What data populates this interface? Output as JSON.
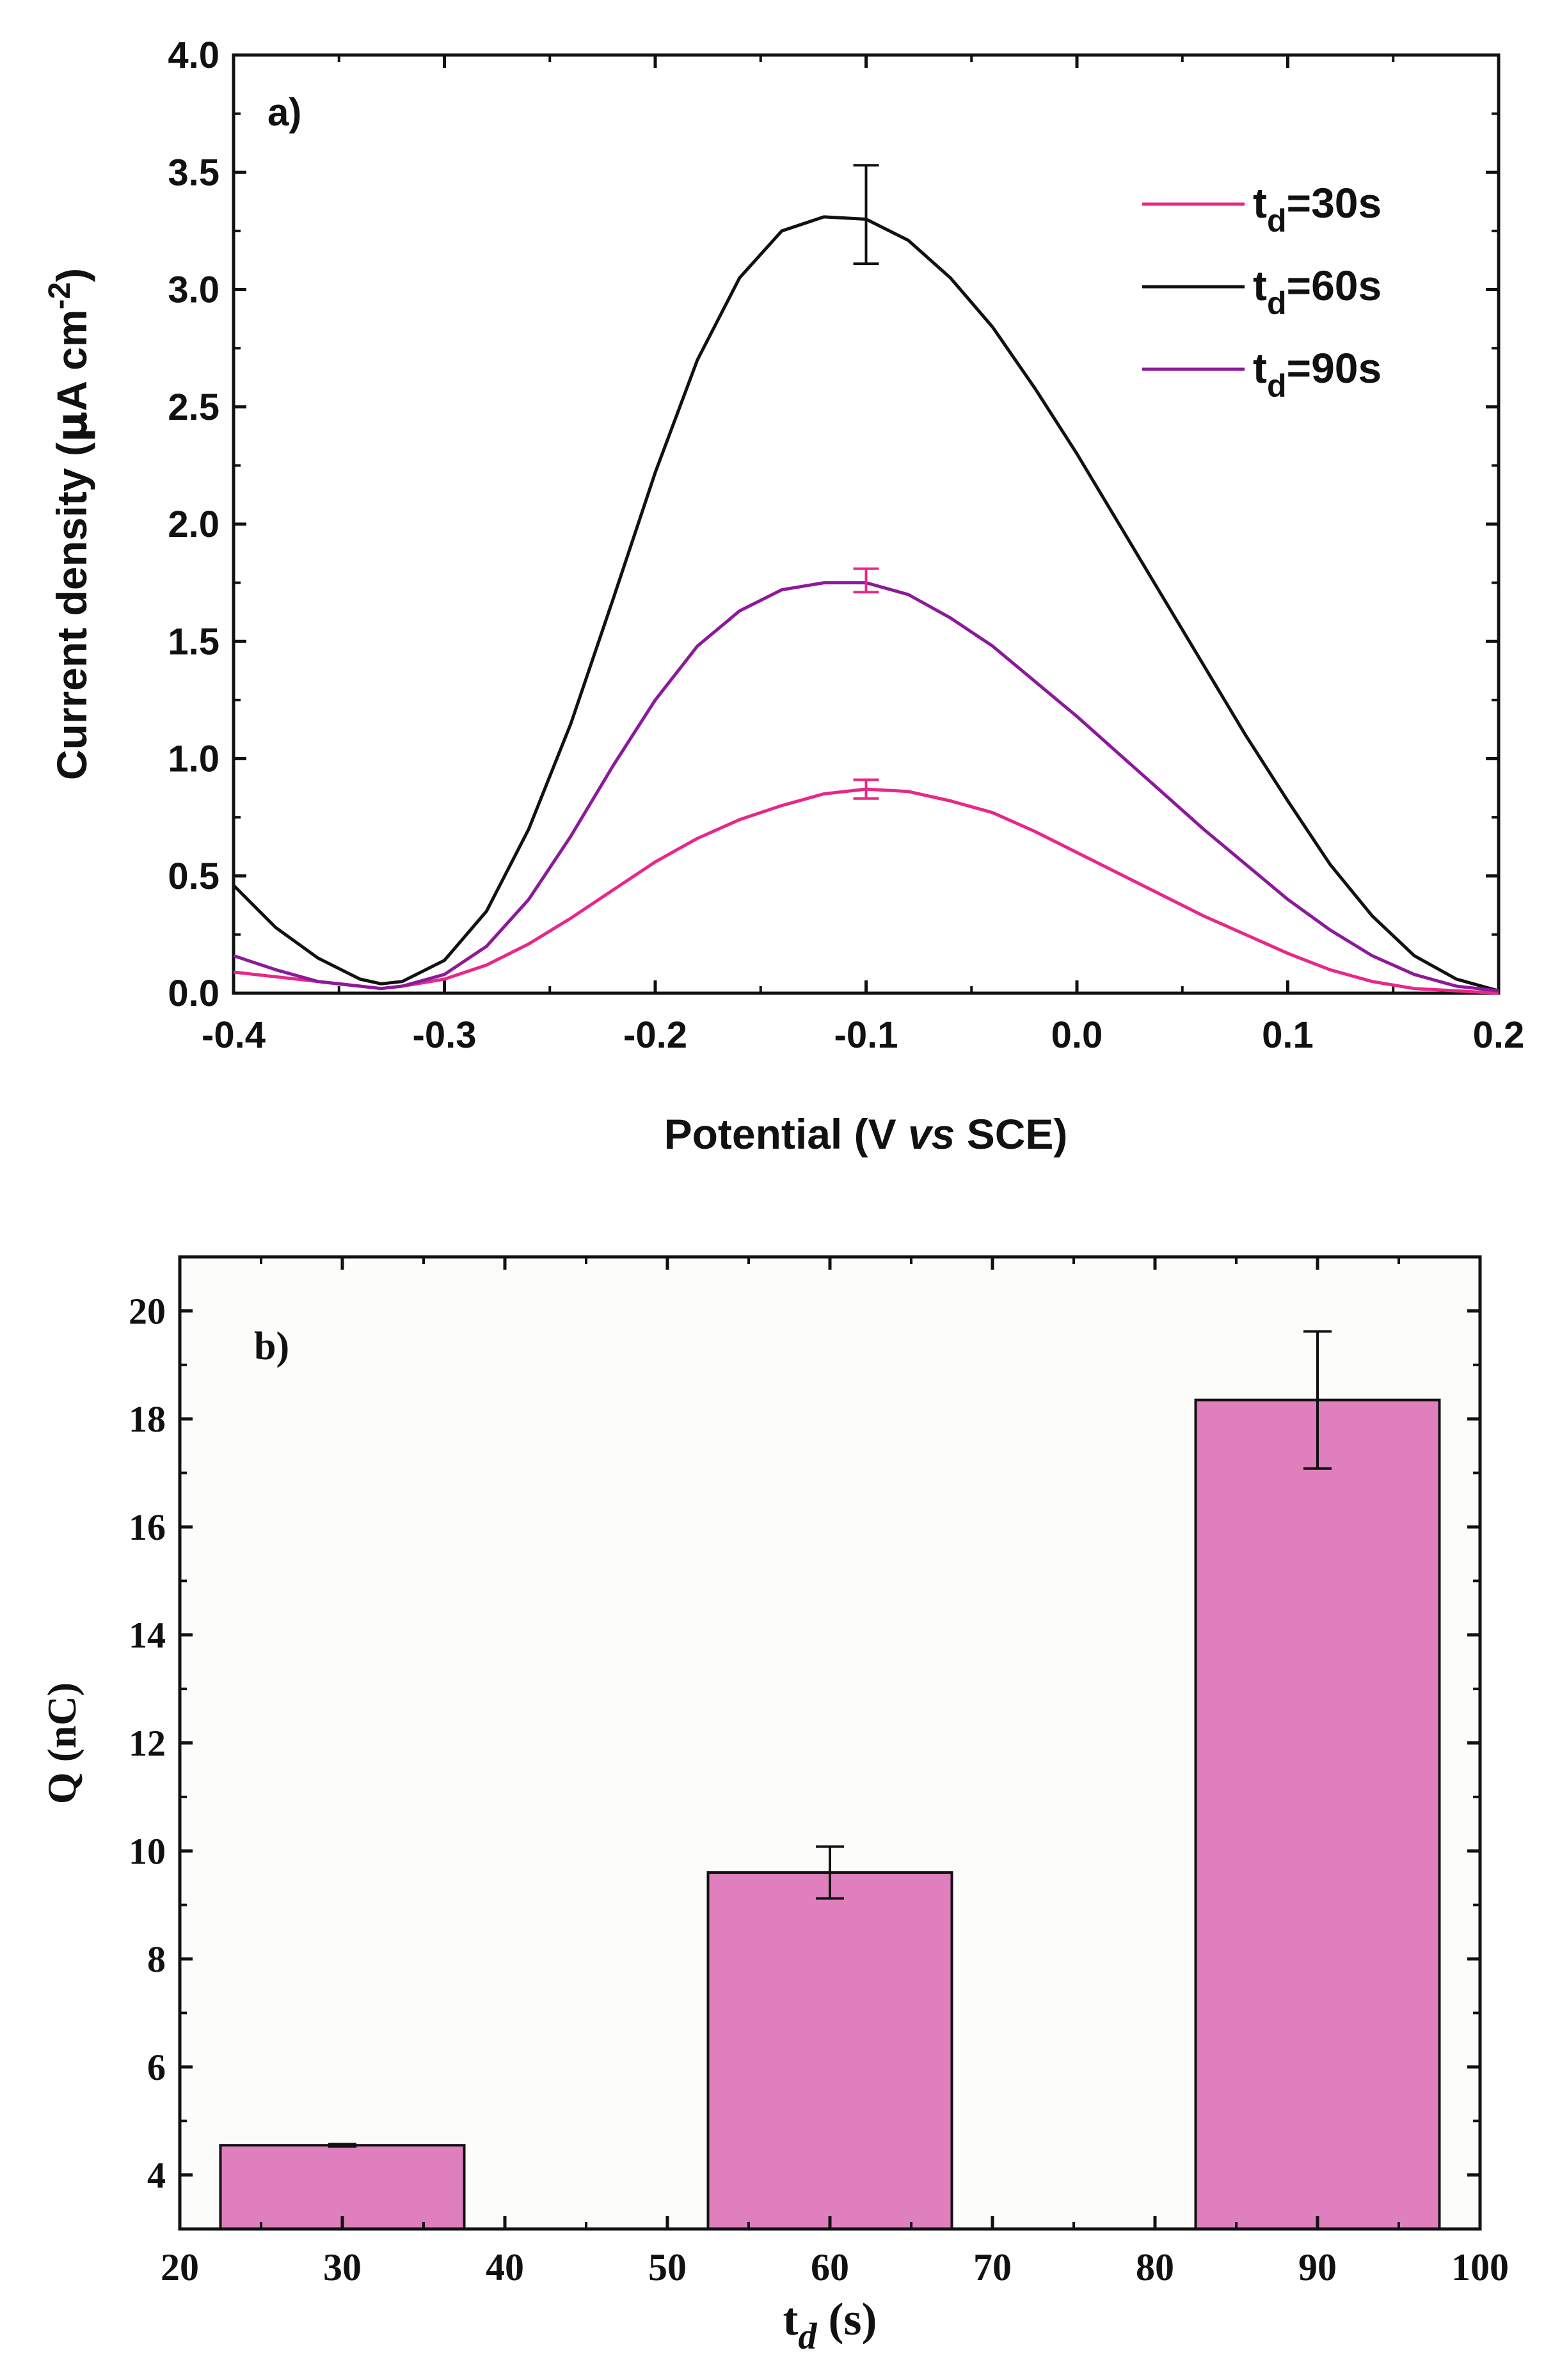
{
  "chart_data": [
    {
      "type": "line",
      "panel_label": "a)",
      "xlabel_parts": [
        "Potential (V ",
        "vs",
        " SCE)"
      ],
      "ylabel_parts": [
        "Current density (",
        "μ",
        "A cm",
        "-2",
        ")"
      ],
      "xlim": [
        -0.4,
        0.2
      ],
      "ylim": [
        0.0,
        4.0
      ],
      "xticks": [
        "-0.4",
        "-0.3",
        "-0.2",
        "-0.1",
        "0.0",
        "0.1",
        "0.2"
      ],
      "yticks": [
        "0.0",
        "0.5",
        "1.0",
        "1.5",
        "2.0",
        "2.5",
        "3.0",
        "3.5",
        "4.0"
      ],
      "legend_position": "top-right",
      "series": [
        {
          "name": "t_d=30s",
          "legend_main": "t",
          "legend_sub": "d",
          "legend_rest": "=30s",
          "color": "#e8278a",
          "x": [
            -0.4,
            -0.38,
            -0.36,
            -0.34,
            -0.33,
            -0.32,
            -0.3,
            -0.28,
            -0.26,
            -0.24,
            -0.22,
            -0.2,
            -0.18,
            -0.16,
            -0.14,
            -0.12,
            -0.1,
            -0.08,
            -0.06,
            -0.04,
            -0.02,
            0.0,
            0.02,
            0.04,
            0.06,
            0.08,
            0.1,
            0.12,
            0.14,
            0.16,
            0.18,
            0.2
          ],
          "y": [
            0.09,
            0.07,
            0.05,
            0.03,
            0.02,
            0.03,
            0.06,
            0.12,
            0.21,
            0.32,
            0.44,
            0.56,
            0.66,
            0.74,
            0.8,
            0.85,
            0.87,
            0.86,
            0.82,
            0.77,
            0.69,
            0.6,
            0.51,
            0.42,
            0.33,
            0.25,
            0.17,
            0.1,
            0.05,
            0.02,
            0.01,
            0.0
          ],
          "error_bar": {
            "x": -0.1,
            "y": 0.87,
            "err": 0.04
          }
        },
        {
          "name": "t_d=60s",
          "legend_main": "t",
          "legend_sub": "d",
          "legend_rest": "=60s",
          "color": "#111111",
          "x": [
            -0.4,
            -0.38,
            -0.36,
            -0.34,
            -0.33,
            -0.32,
            -0.3,
            -0.28,
            -0.26,
            -0.24,
            -0.22,
            -0.2,
            -0.18,
            -0.16,
            -0.14,
            -0.12,
            -0.1,
            -0.08,
            -0.06,
            -0.04,
            -0.02,
            0.0,
            0.02,
            0.04,
            0.06,
            0.08,
            0.1,
            0.12,
            0.14,
            0.16,
            0.18,
            0.2
          ],
          "y": [
            0.46,
            0.28,
            0.15,
            0.06,
            0.04,
            0.05,
            0.14,
            0.35,
            0.7,
            1.15,
            1.68,
            2.22,
            2.7,
            3.05,
            3.25,
            3.31,
            3.3,
            3.21,
            3.05,
            2.84,
            2.58,
            2.3,
            2.0,
            1.7,
            1.4,
            1.1,
            0.82,
            0.55,
            0.33,
            0.16,
            0.06,
            0.01
          ],
          "error_bar": {
            "x": -0.1,
            "y": 3.32,
            "err": 0.21
          }
        },
        {
          "name": "t_d=90s",
          "legend_main": "t",
          "legend_sub": "d",
          "legend_rest": "=90s",
          "color": "#8b1a9a",
          "x": [
            -0.4,
            -0.38,
            -0.36,
            -0.34,
            -0.33,
            -0.32,
            -0.3,
            -0.28,
            -0.26,
            -0.24,
            -0.22,
            -0.2,
            -0.18,
            -0.16,
            -0.14,
            -0.12,
            -0.1,
            -0.08,
            -0.06,
            -0.04,
            -0.02,
            0.0,
            0.02,
            0.04,
            0.06,
            0.08,
            0.1,
            0.12,
            0.14,
            0.16,
            0.18,
            0.2
          ],
          "y": [
            0.16,
            0.1,
            0.05,
            0.03,
            0.02,
            0.03,
            0.08,
            0.2,
            0.4,
            0.67,
            0.97,
            1.25,
            1.48,
            1.63,
            1.72,
            1.75,
            1.75,
            1.7,
            1.6,
            1.48,
            1.33,
            1.18,
            1.02,
            0.86,
            0.7,
            0.55,
            0.4,
            0.27,
            0.16,
            0.08,
            0.03,
            0.01
          ],
          "error_bar": {
            "x": -0.1,
            "y": 1.76,
            "err": 0.05,
            "color": "#e8278a"
          }
        }
      ]
    },
    {
      "type": "bar",
      "panel_label": "b)",
      "xlabel_main": "t",
      "xlabel_sub": "d",
      "xlabel_rest": " (s)",
      "ylabel": "Q (nC)",
      "xlim": [
        20,
        100
      ],
      "ylim": [
        3,
        21
      ],
      "xticks": [
        "20",
        "30",
        "40",
        "50",
        "60",
        "70",
        "80",
        "90",
        "100"
      ],
      "yticks": [
        "4",
        "6",
        "8",
        "10",
        "12",
        "14",
        "16",
        "18",
        "20"
      ],
      "bar_color": "#df7fbd",
      "bar_half_width": 7.5,
      "x": [
        30,
        60,
        90
      ],
      "values": [
        4.55,
        9.6,
        18.35
      ],
      "errors": [
        0.02,
        0.48,
        1.27
      ]
    }
  ]
}
